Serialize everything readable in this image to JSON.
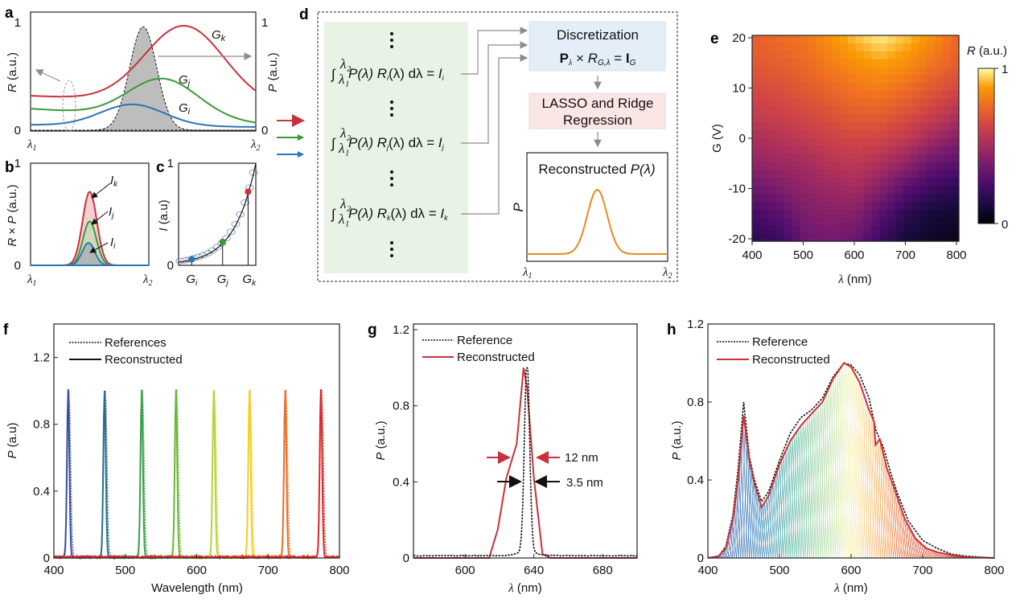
{
  "colors": {
    "red": "#c8323a",
    "green": "#3a9a3a",
    "blue": "#2e75b0",
    "orange": "#e88a22",
    "gray": "#8c8c8c",
    "blue_box": "#e3eef8",
    "pink_box": "#fbe6e6",
    "green_box": "#e8f3e6"
  },
  "panel_labels": {
    "a": "a",
    "b": "b",
    "c": "c",
    "d": "d",
    "e": "e",
    "f": "f",
    "g": "g",
    "h": "h"
  },
  "lambda1": {
    "main": "λ",
    "sub": "1"
  },
  "lambda2": {
    "main": "λ",
    "sub": "2"
  },
  "chart_data": [
    {
      "panel": "a",
      "type": "line",
      "ylabel_left": {
        "var": "R",
        "unit": " (a.u.)"
      },
      "ylabel_right": {
        "var": "P",
        "unit": " (a.u.)"
      },
      "yticks_left": [
        "0",
        "1"
      ],
      "yticks_right": [
        "0",
        "1"
      ],
      "ylim": [
        0,
        1.1
      ],
      "xlim": [
        0,
        1
      ],
      "series": [
        {
          "name": "G",
          "sub": "k",
          "color": "#c8323a",
          "base_left": 0.32,
          "base_right": 0.22,
          "peak": 0.97,
          "peak_x": 0.68,
          "width": 0.25
        },
        {
          "name": "G",
          "sub": "j",
          "color": "#3a9a3a",
          "base_left": 0.2,
          "base_right": 0.06,
          "peak": 0.48,
          "peak_x": 0.58,
          "width": 0.22
        },
        {
          "name": "G",
          "sub": "i",
          "color": "#2e75b0",
          "base_left": 0.05,
          "base_right": 0.03,
          "peak": 0.24,
          "peak_x": 0.45,
          "width": 0.2
        }
      ],
      "spectrum": {
        "name": "P",
        "peak": 0.96,
        "peak_x": 0.5,
        "width": 0.085
      }
    },
    {
      "panel": "b",
      "type": "area",
      "ylabel": {
        "var1": "R",
        "op": " × ",
        "var2": "P",
        "unit": " (a.u.)"
      },
      "yticks": [
        "0",
        "1"
      ],
      "ylim": [
        0,
        1
      ],
      "series": [
        {
          "name": "I",
          "sub": "k",
          "color": "#c8323a",
          "fill": "#f4c4c4",
          "peak": 0.72,
          "peak_x": 0.5,
          "width": 0.085
        },
        {
          "name": "I",
          "sub": "j",
          "color": "#3a9a3a",
          "fill": "#c8d8b8",
          "peak": 0.43,
          "peak_x": 0.5,
          "width": 0.08
        },
        {
          "name": "I",
          "sub": "i",
          "color": "#2e75b0",
          "fill": "#a8b0b0",
          "peak": 0.22,
          "peak_x": 0.49,
          "width": 0.075
        }
      ]
    },
    {
      "panel": "c",
      "type": "scatter",
      "ylabel": {
        "var": "I",
        "unit": " (a.u)"
      },
      "yticks": [
        "0",
        "1"
      ],
      "ylim": [
        0,
        1
      ],
      "curve_exponent": 3.6,
      "circles_x": [
        0.02,
        0.08,
        0.14,
        0.2,
        0.26,
        0.32,
        0.38,
        0.44,
        0.5,
        0.56,
        0.62,
        0.68,
        0.74,
        0.8,
        0.86,
        0.92,
        0.97
      ],
      "points": [
        {
          "name": "G",
          "sub": "i",
          "x": 0.17,
          "y": 0.06,
          "color": "#2e75b0"
        },
        {
          "name": "G",
          "sub": "j",
          "x": 0.57,
          "y": 0.23,
          "color": "#3a9a3a"
        },
        {
          "name": "G",
          "sub": "k",
          "x": 0.9,
          "y": 0.72,
          "color": "#c8323a"
        }
      ]
    },
    {
      "panel": "e",
      "type": "heatmap",
      "title": {
        "var": "R",
        "unit": " (a.u.)"
      },
      "xlabel": {
        "var": "λ",
        "unit": " (nm)"
      },
      "ylabel": "G (V)",
      "xticks": [
        "400",
        "500",
        "600",
        "700",
        "800"
      ],
      "yticks": [
        "20",
        "10",
        "0",
        "-10",
        "-20"
      ],
      "x": [
        400,
        450,
        500,
        550,
        600,
        650,
        700,
        750,
        800
      ],
      "y": [
        20,
        15,
        10,
        5,
        0,
        -5,
        -10,
        -15,
        -20
      ],
      "colorbar_ticks": [
        "1",
        "0"
      ],
      "z": [
        [
          0.72,
          0.75,
          0.78,
          0.85,
          0.92,
          0.97,
          0.92,
          0.85,
          0.75
        ],
        [
          0.7,
          0.72,
          0.75,
          0.8,
          0.85,
          0.88,
          0.85,
          0.78,
          0.72
        ],
        [
          0.65,
          0.67,
          0.7,
          0.74,
          0.78,
          0.8,
          0.76,
          0.7,
          0.65
        ],
        [
          0.6,
          0.62,
          0.65,
          0.68,
          0.72,
          0.72,
          0.68,
          0.62,
          0.55
        ],
        [
          0.52,
          0.55,
          0.58,
          0.62,
          0.64,
          0.63,
          0.58,
          0.5,
          0.42
        ],
        [
          0.45,
          0.48,
          0.5,
          0.55,
          0.57,
          0.53,
          0.45,
          0.35,
          0.3
        ],
        [
          0.35,
          0.4,
          0.45,
          0.48,
          0.5,
          0.42,
          0.3,
          0.22,
          0.18
        ],
        [
          0.25,
          0.3,
          0.4,
          0.42,
          0.42,
          0.3,
          0.18,
          0.12,
          0.1
        ],
        [
          0.18,
          0.22,
          0.35,
          0.38,
          0.35,
          0.22,
          0.12,
          0.08,
          0.06
        ]
      ]
    },
    {
      "panel": "f",
      "type": "line",
      "xlabel": "Wavelength (nm)",
      "ylabel": {
        "var": "P",
        "unit": " (a.u)"
      },
      "xlim": [
        400,
        800
      ],
      "ylim": [
        0,
        1.4
      ],
      "xticks": [
        "400",
        "500",
        "600",
        "700",
        "800"
      ],
      "yticks": [
        "0",
        "0.4",
        "0.8",
        "1.2"
      ],
      "legend": [
        "References",
        "Reconstructed"
      ],
      "peaks": [
        {
          "center": 420,
          "color": "#3a4fa0"
        },
        {
          "center": 471,
          "color": "#2a6e8a"
        },
        {
          "center": 523,
          "color": "#3aa04a"
        },
        {
          "center": 571,
          "color": "#6ab63a"
        },
        {
          "center": 624,
          "color": "#b8d23a"
        },
        {
          "center": 674,
          "color": "#f0d020"
        },
        {
          "center": 724,
          "color": "#e8702a"
        },
        {
          "center": 774,
          "color": "#e02828"
        }
      ],
      "peak_height": 1.0
    },
    {
      "panel": "g",
      "type": "line",
      "xlabel": {
        "var": "λ",
        "unit": " (nm)"
      },
      "ylabel": {
        "var": "P",
        "unit": " (a.u.)"
      },
      "xlim": [
        570,
        700
      ],
      "ylim": [
        0,
        1.23
      ],
      "xticks": [
        "600",
        "640",
        "680"
      ],
      "yticks": [
        "0",
        "0.4",
        "0.8",
        "1.2"
      ],
      "legend": [
        "Reference",
        "Reconstructed"
      ],
      "reference": {
        "center": 636,
        "fwhm": 3.5,
        "baseline": 0.01
      },
      "reconstructed": [
        [
          570,
          0
        ],
        [
          614,
          0
        ],
        [
          619,
          0.15
        ],
        [
          624,
          0.42
        ],
        [
          630,
          0.6
        ],
        [
          634,
          1.0
        ],
        [
          636,
          0.9
        ],
        [
          640,
          0.42
        ],
        [
          645,
          0.02
        ],
        [
          650,
          0
        ],
        [
          700,
          0
        ]
      ],
      "annotations": [
        {
          "text": "12 nm",
          "color": "#c8323a"
        },
        {
          "text": "3.5 nm",
          "color": "#111111"
        }
      ]
    },
    {
      "panel": "h",
      "type": "line",
      "xlabel": {
        "var": "λ",
        "unit": " (nm)"
      },
      "ylabel": {
        "var": "P",
        "unit": " (a.u.)"
      },
      "xlim": [
        400,
        800
      ],
      "ylim": [
        0,
        1.2
      ],
      "xticks": [
        "400",
        "500",
        "600",
        "700",
        "800"
      ],
      "yticks": [
        "0",
        "0.4",
        "0.8",
        "1.2"
      ],
      "legend": [
        "Reference",
        "Reconstructed"
      ],
      "reconstructed": [
        [
          400,
          0
        ],
        [
          415,
          0.01
        ],
        [
          425,
          0.05
        ],
        [
          435,
          0.2
        ],
        [
          442,
          0.4
        ],
        [
          450,
          0.73
        ],
        [
          458,
          0.5
        ],
        [
          465,
          0.38
        ],
        [
          475,
          0.26
        ],
        [
          485,
          0.32
        ],
        [
          500,
          0.48
        ],
        [
          515,
          0.6
        ],
        [
          530,
          0.68
        ],
        [
          545,
          0.74
        ],
        [
          560,
          0.8
        ],
        [
          575,
          0.92
        ],
        [
          590,
          1.0
        ],
        [
          600,
          0.98
        ],
        [
          612,
          0.9
        ],
        [
          625,
          0.76
        ],
        [
          632,
          0.7
        ],
        [
          634,
          0.58
        ],
        [
          640,
          0.61
        ],
        [
          650,
          0.46
        ],
        [
          660,
          0.36
        ],
        [
          675,
          0.2
        ],
        [
          690,
          0.1
        ],
        [
          705,
          0.05
        ],
        [
          720,
          0.03
        ],
        [
          740,
          0.015
        ],
        [
          760,
          0.005
        ],
        [
          800,
          0
        ]
      ],
      "reference": [
        [
          400,
          0
        ],
        [
          415,
          0.01
        ],
        [
          425,
          0.06
        ],
        [
          435,
          0.22
        ],
        [
          442,
          0.45
        ],
        [
          450,
          0.8
        ],
        [
          458,
          0.52
        ],
        [
          465,
          0.4
        ],
        [
          475,
          0.29
        ],
        [
          485,
          0.34
        ],
        [
          500,
          0.5
        ],
        [
          515,
          0.64
        ],
        [
          530,
          0.72
        ],
        [
          545,
          0.76
        ],
        [
          560,
          0.82
        ],
        [
          575,
          0.93
        ],
        [
          590,
          1.0
        ],
        [
          600,
          0.99
        ],
        [
          612,
          0.94
        ],
        [
          625,
          0.82
        ],
        [
          635,
          0.65
        ],
        [
          645,
          0.57
        ],
        [
          655,
          0.44
        ],
        [
          665,
          0.33
        ],
        [
          680,
          0.19
        ],
        [
          700,
          0.09
        ],
        [
          720,
          0.05
        ],
        [
          740,
          0.02
        ],
        [
          760,
          0.01
        ],
        [
          800,
          0
        ]
      ]
    }
  ],
  "diagram": {
    "equations": [
      {
        "r_sub": "i",
        "i_sub": "i"
      },
      {
        "r_sub": "j",
        "i_sub": "j"
      },
      {
        "r_sub": "k",
        "i_sub": "k"
      }
    ],
    "eq_p": "P(λ) ",
    "eq_r": "R",
    "eq_mid": "(λ) dλ = ",
    "eq_i": "I",
    "int_sign": "∫",
    "int_upper": "λ₂",
    "int_lower": "λ₁",
    "vdots": "⋮",
    "discretization_title": "Discretization",
    "disc_eq": {
      "p": "P",
      "p_sub": "λ",
      "times": " × ",
      "r": "R",
      "r_sub": "G,λ",
      "eq": " = ",
      "i": "I",
      "i_sub": "G"
    },
    "regression_line1": "LASSO and Ridge",
    "regression_line2": "Regression",
    "reconstructed_title": "Reconstructed ",
    "reconstructed_var": "P(λ)",
    "plot_ylabel": "P"
  }
}
